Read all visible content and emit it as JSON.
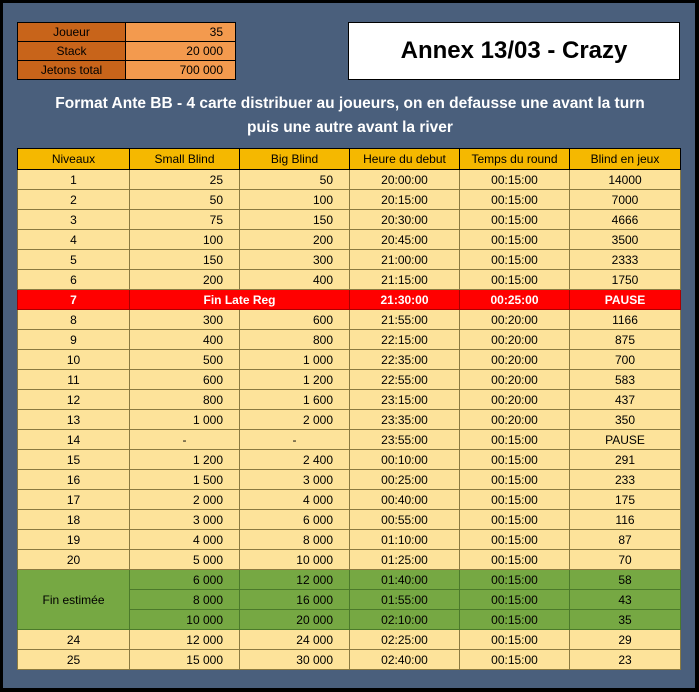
{
  "info": [
    {
      "label": "Joueur",
      "value": "35"
    },
    {
      "label": "Stack",
      "value": "20 000"
    },
    {
      "label": "Jetons total",
      "value": "700 000"
    }
  ],
  "title": "Annex 13/03 - Crazy",
  "description_line1": "Format Ante BB - 4 carte distribuer au joueurs, on en defausse une avant la turn",
  "description_line2": "puis une autre avant la river",
  "headers": [
    "Niveaux",
    "Small Blind",
    "Big Blind",
    "Heure du debut",
    "Temps du round",
    "Blind en jeux"
  ],
  "rows": [
    {
      "level": "1",
      "sb": "25",
      "bb": "50",
      "start": "20:00:00",
      "round": "00:15:00",
      "blind": "14000"
    },
    {
      "level": "2",
      "sb": "50",
      "bb": "100",
      "start": "20:15:00",
      "round": "00:15:00",
      "blind": "7000"
    },
    {
      "level": "3",
      "sb": "75",
      "bb": "150",
      "start": "20:30:00",
      "round": "00:15:00",
      "blind": "4666"
    },
    {
      "level": "4",
      "sb": "100",
      "bb": "200",
      "start": "20:45:00",
      "round": "00:15:00",
      "blind": "3500"
    },
    {
      "level": "5",
      "sb": "150",
      "bb": "300",
      "start": "21:00:00",
      "round": "00:15:00",
      "blind": "2333"
    },
    {
      "level": "6",
      "sb": "200",
      "bb": "400",
      "start": "21:15:00",
      "round": "00:15:00",
      "blind": "1750"
    },
    {
      "level": "7",
      "merged": "Fin Late Reg",
      "start": "21:30:00",
      "round": "00:25:00",
      "blind": "PAUSE",
      "style": "pause"
    },
    {
      "level": "8",
      "sb": "300",
      "bb": "600",
      "start": "21:55:00",
      "round": "00:20:00",
      "blind": "1166"
    },
    {
      "level": "9",
      "sb": "400",
      "bb": "800",
      "start": "22:15:00",
      "round": "00:20:00",
      "blind": "875"
    },
    {
      "level": "10",
      "sb": "500",
      "bb": "1 000",
      "start": "22:35:00",
      "round": "00:20:00",
      "blind": "700"
    },
    {
      "level": "11",
      "sb": "600",
      "bb": "1 200",
      "start": "22:55:00",
      "round": "00:20:00",
      "blind": "583"
    },
    {
      "level": "12",
      "sb": "800",
      "bb": "1 600",
      "start": "23:15:00",
      "round": "00:20:00",
      "blind": "437"
    },
    {
      "level": "13",
      "sb": "1 000",
      "bb": "2 000",
      "start": "23:35:00",
      "round": "00:20:00",
      "blind": "350"
    },
    {
      "level": "14",
      "sb": "-",
      "bb": "-",
      "start": "23:55:00",
      "round": "00:15:00",
      "blind": "PAUSE",
      "dash": true
    },
    {
      "level": "15",
      "sb": "1 200",
      "bb": "2 400",
      "start": "00:10:00",
      "round": "00:15:00",
      "blind": "291"
    },
    {
      "level": "16",
      "sb": "1 500",
      "bb": "3 000",
      "start": "00:25:00",
      "round": "00:15:00",
      "blind": "233"
    },
    {
      "level": "17",
      "sb": "2 000",
      "bb": "4 000",
      "start": "00:40:00",
      "round": "00:15:00",
      "blind": "175"
    },
    {
      "level": "18",
      "sb": "3 000",
      "bb": "6 000",
      "start": "00:55:00",
      "round": "00:15:00",
      "blind": "116"
    },
    {
      "level": "19",
      "sb": "4 000",
      "bb": "8 000",
      "start": "01:10:00",
      "round": "00:15:00",
      "blind": "87"
    },
    {
      "level": "20",
      "sb": "5 000",
      "bb": "10 000",
      "start": "01:25:00",
      "round": "00:15:00",
      "blind": "70"
    },
    {
      "level": "Fin estimée",
      "sb": "6 000",
      "bb": "12 000",
      "start": "01:40:00",
      "round": "00:15:00",
      "blind": "58",
      "style": "est",
      "span": 3
    },
    {
      "sb": "8 000",
      "bb": "16 000",
      "start": "01:55:00",
      "round": "00:15:00",
      "blind": "43",
      "style": "est"
    },
    {
      "sb": "10 000",
      "bb": "20 000",
      "start": "02:10:00",
      "round": "00:15:00",
      "blind": "35",
      "style": "est"
    },
    {
      "level": "24",
      "sb": "12 000",
      "bb": "24 000",
      "start": "02:25:00",
      "round": "00:15:00",
      "blind": "29"
    },
    {
      "level": "25",
      "sb": "15 000",
      "bb": "30 000",
      "start": "02:40:00",
      "round": "00:15:00",
      "blind": "23"
    }
  ]
}
